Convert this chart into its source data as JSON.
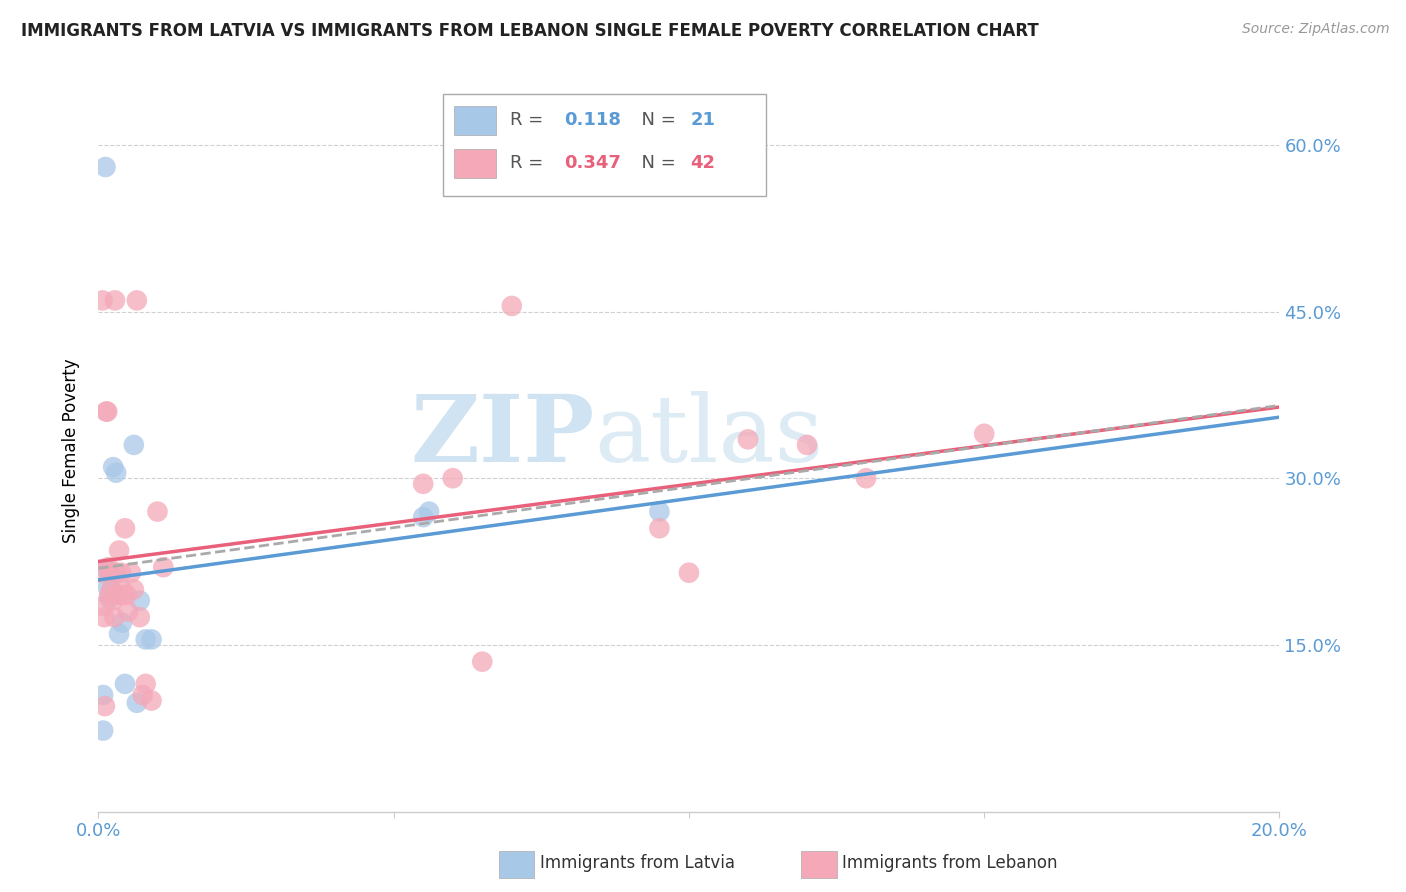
{
  "title": "IMMIGRANTS FROM LATVIA VS IMMIGRANTS FROM LEBANON SINGLE FEMALE POVERTY CORRELATION CHART",
  "source": "Source: ZipAtlas.com",
  "ylabel": "Single Female Poverty",
  "legend_label1": "Immigrants from Latvia",
  "legend_label2": "Immigrants from Lebanon",
  "R1": 0.118,
  "N1": 21,
  "R2": 0.347,
  "N2": 42,
  "color_latvia": "#a8c8e8",
  "color_lebanon": "#f4a8b8",
  "color_latvia_line": "#5b9bd5",
  "color_lebanon_line": "#e8607a",
  "color_dashed": "#aaaaaa",
  "ytick_labels": [
    "15.0%",
    "30.0%",
    "45.0%",
    "60.0%"
  ],
  "ytick_values": [
    0.15,
    0.3,
    0.45,
    0.6
  ],
  "xlim": [
    0.0,
    0.2
  ],
  "ylim": [
    0.0,
    0.65
  ],
  "latvia_x": [
    0.0008,
    0.0008,
    0.0012,
    0.0014,
    0.0016,
    0.0018,
    0.002,
    0.0022,
    0.0025,
    0.003,
    0.0035,
    0.004,
    0.0045,
    0.006,
    0.0065,
    0.007,
    0.008,
    0.009,
    0.055,
    0.056,
    0.095
  ],
  "latvia_y": [
    0.105,
    0.073,
    0.58,
    0.218,
    0.202,
    0.192,
    0.215,
    0.2,
    0.31,
    0.305,
    0.16,
    0.17,
    0.115,
    0.33,
    0.098,
    0.19,
    0.155,
    0.155,
    0.265,
    0.27,
    0.27
  ],
  "lebanon_x": [
    0.0005,
    0.0007,
    0.0008,
    0.001,
    0.0011,
    0.0013,
    0.0015,
    0.0017,
    0.0018,
    0.002,
    0.0022,
    0.0025,
    0.0027,
    0.0028,
    0.003,
    0.0032,
    0.0035,
    0.0038,
    0.004,
    0.0042,
    0.0045,
    0.0048,
    0.005,
    0.0055,
    0.006,
    0.0065,
    0.007,
    0.0075,
    0.008,
    0.009,
    0.01,
    0.011,
    0.055,
    0.06,
    0.065,
    0.07,
    0.095,
    0.1,
    0.11,
    0.12,
    0.13,
    0.15
  ],
  "lebanon_y": [
    0.215,
    0.46,
    0.185,
    0.175,
    0.095,
    0.36,
    0.36,
    0.22,
    0.195,
    0.215,
    0.2,
    0.19,
    0.175,
    0.46,
    0.215,
    0.195,
    0.235,
    0.215,
    0.2,
    0.195,
    0.255,
    0.195,
    0.18,
    0.215,
    0.2,
    0.46,
    0.175,
    0.105,
    0.115,
    0.1,
    0.27,
    0.22,
    0.295,
    0.3,
    0.135,
    0.455,
    0.255,
    0.215,
    0.335,
    0.33,
    0.3,
    0.34
  ],
  "watermark_zip": "ZIP",
  "watermark_atlas": "atlas",
  "background_color": "#ffffff",
  "grid_color": "#d0d0d0"
}
